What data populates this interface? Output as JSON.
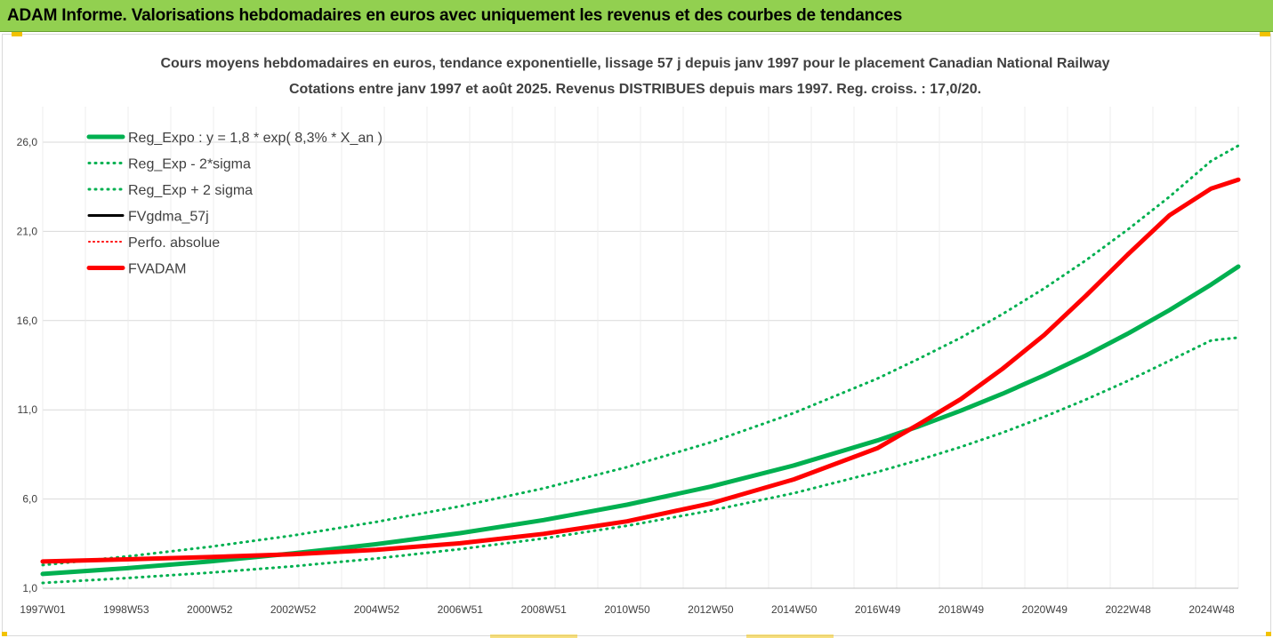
{
  "header": {
    "title": "ADAM Informe. Valorisations hebdomadaires en euros avec uniquement les revenus et des courbes de tendances"
  },
  "chart_data": {
    "type": "line",
    "title_line1": "Cours moyens hebdomadaires en euros, tendance exponentielle, lissage 57 j depuis janv 1997  pour le placement Canadian National Railway",
    "title_line2": "Cotations entre janv 1997 et août 2025. Revenus DISTRIBUES depuis mars 1997. Reg. croiss. : 17,0/20.",
    "ylim": [
      1.0,
      26.0
    ],
    "y_ticks": [
      "1,0",
      "6,0",
      "11,0",
      "16,0",
      "21,0",
      "26,0"
    ],
    "x_range_years": [
      1997.0,
      2025.65
    ],
    "x_tick_labels": [
      "1997W01",
      "1998W53",
      "2000W52",
      "2002W52",
      "2004W52",
      "2006W51",
      "2008W51",
      "2010W50",
      "2012W50",
      "2014W50",
      "2016W49",
      "2018W49",
      "2020W49",
      "2022W48",
      "2024W48"
    ],
    "grid": true,
    "legend_position": "top-left",
    "x": [
      1997.0,
      1999.0,
      2001.0,
      2003.0,
      2005.0,
      2007.0,
      2009.0,
      2011.0,
      2013.0,
      2015.0,
      2017.0,
      2018.0,
      2019.0,
      2020.0,
      2021.0,
      2022.0,
      2023.0,
      2024.0,
      2025.0,
      2025.65
    ],
    "series": [
      {
        "name": "Reg_Expo : y = 1,8 * exp( 8,3% *  X_an )",
        "color": "#00b050",
        "style": "solid",
        "width": 5,
        "values": [
          1.8,
          2.12,
          2.5,
          2.95,
          3.47,
          4.09,
          4.82,
          5.68,
          6.69,
          7.88,
          9.28,
          10.08,
          10.95,
          11.9,
          12.93,
          14.05,
          15.27,
          16.59,
          18.02,
          19.03
        ]
      },
      {
        "name": "Reg_Exp - 2*sigma",
        "color": "#00b050",
        "style": "dotted",
        "width": 3,
        "values": [
          1.3,
          1.57,
          1.87,
          2.23,
          2.67,
          3.19,
          3.79,
          4.5,
          5.35,
          6.33,
          7.52,
          8.19,
          8.92,
          9.72,
          10.61,
          11.58,
          12.62,
          13.75,
          14.89,
          15.05
        ]
      },
      {
        "name": "Reg_Exp + 2 sigma",
        "color": "#00b050",
        "style": "dotted",
        "width": 3,
        "values": [
          2.3,
          2.78,
          3.32,
          3.96,
          4.72,
          5.59,
          6.6,
          7.79,
          9.17,
          10.82,
          12.75,
          13.87,
          15.04,
          16.37,
          17.81,
          19.38,
          21.1,
          22.94,
          24.95,
          25.8
        ]
      },
      {
        "name": "FVgdma_57j",
        "color": "#000000",
        "style": "solid",
        "width": 3,
        "values": [
          2.5,
          2.62,
          2.75,
          2.9,
          3.15,
          3.52,
          4.05,
          4.75,
          5.75,
          7.1,
          8.85,
          10.2,
          11.6,
          13.3,
          15.2,
          17.4,
          19.7,
          21.9,
          23.4,
          23.9
        ]
      },
      {
        "name": "Perfo. absolue",
        "color": "#ff0000",
        "style": "dotted",
        "width": 2,
        "values": [
          2.5,
          2.62,
          2.75,
          2.9,
          3.15,
          3.52,
          4.05,
          4.75,
          5.75,
          7.1,
          8.85,
          10.2,
          11.6,
          13.3,
          15.2,
          17.4,
          19.7,
          21.9,
          23.4,
          23.9
        ]
      },
      {
        "name": "FVADAM",
        "color": "#ff0000",
        "style": "solid",
        "width": 5,
        "values": [
          2.5,
          2.62,
          2.75,
          2.9,
          3.15,
          3.52,
          4.05,
          4.75,
          5.75,
          7.1,
          8.85,
          10.2,
          11.6,
          13.3,
          15.2,
          17.4,
          19.7,
          21.9,
          23.4,
          23.9
        ]
      }
    ]
  }
}
